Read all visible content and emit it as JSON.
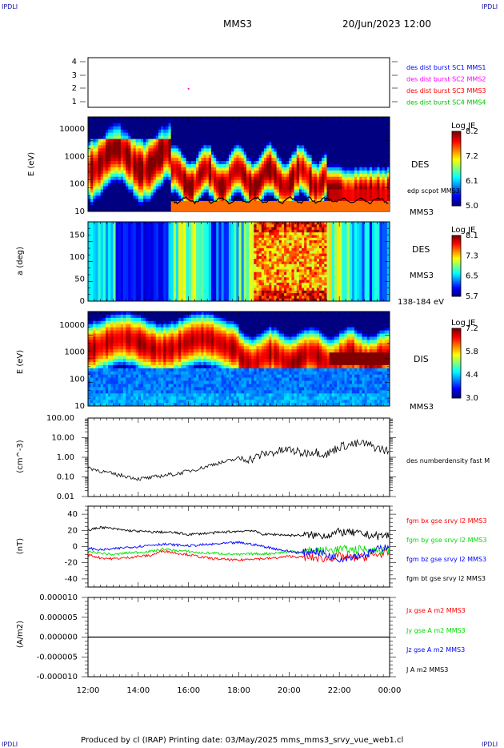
{
  "corner_label": "IPDLI",
  "header": {
    "title": "MMS3",
    "datetime": "20/Jun/2023 12:00"
  },
  "footer": {
    "text": "Produced by cl (IRAP)   Printing date: 03/May/2025   mms_mms3_srvy_vue_web1.cl"
  },
  "colors": {
    "mms1": "#0000ff",
    "mms2": "#ff00ff",
    "mms3": "#ff0000",
    "mms4": "#00c000",
    "bx": "#ff0000",
    "by": "#00dd00",
    "bz": "#0000ff",
    "bt": "#000000"
  },
  "chart_data": [
    {
      "type": "scatter",
      "panel": "burst",
      "yticks": [
        "4",
        "3",
        "2",
        "1"
      ],
      "ylim": [
        0.5,
        4.5
      ],
      "series": [
        {
          "name": "des dist burst SC1 MMS1",
          "color": "#0000ff",
          "values": []
        },
        {
          "name": "des dist burst SC2 MMS2",
          "color": "#ff00ff",
          "points": [
            {
              "x": "16:00",
              "y": 2
            }
          ]
        },
        {
          "name": "des dist burst SC3 MMS3",
          "color": "#ff0000",
          "values": []
        },
        {
          "name": "des dist burst SC4 MMS4",
          "color": "#00c000",
          "values": []
        }
      ]
    },
    {
      "type": "heatmap",
      "panel": "des-energy",
      "ylabel": "E (eV)",
      "yticks": [
        "10000",
        "1000",
        "100",
        "10"
      ],
      "ylim": [
        10,
        30000
      ],
      "yscale": "log",
      "label_right": "DES",
      "label_sc": "MMS3",
      "overlay_label": "edp scpot MMS3",
      "colorbar": {
        "title": "Log JE",
        "ticks": [
          "8.2",
          "7.2",
          "6.1",
          "5.0"
        ],
        "range": [
          5.0,
          8.2
        ]
      }
    },
    {
      "type": "heatmap",
      "panel": "des-pitch",
      "ylabel": "a (deg)",
      "yticks": [
        "150",
        "100",
        "50",
        "0"
      ],
      "ylim": [
        0,
        180
      ],
      "label_right": "DES",
      "label_sc": "MMS3",
      "energy_range": "138-184 eV",
      "colorbar": {
        "title": "Log JE",
        "ticks": [
          "8.1",
          "7.3",
          "6.5",
          "5.7"
        ],
        "range": [
          5.7,
          8.1
        ]
      }
    },
    {
      "type": "heatmap",
      "panel": "dis-energy",
      "ylabel": "E (eV)",
      "yticks": [
        "10000",
        "1000",
        "100",
        "10"
      ],
      "ylim": [
        10,
        30000
      ],
      "yscale": "log",
      "label_right": "DIS",
      "label_sc": "MMS3",
      "colorbar": {
        "title": "Log JE",
        "ticks": [
          "7.2",
          "5.8",
          "4.4",
          "3.0"
        ],
        "range": [
          3.0,
          7.2
        ]
      }
    },
    {
      "type": "line",
      "panel": "density",
      "ylabel": "(cm^-3)",
      "yscale": "log",
      "yticks": [
        "100.00",
        "10.00",
        "1.00",
        "0.10",
        "0.01"
      ],
      "ylim": [
        0.01,
        100
      ],
      "series": [
        {
          "name": "des numberdensity fast M",
          "x": [
            12,
            12.5,
            13,
            13.5,
            14,
            14.5,
            15,
            15.5,
            16,
            16.5,
            17,
            17.5,
            18,
            18.5,
            19,
            19.5,
            20,
            20.5,
            21,
            21.5,
            22,
            22.5,
            23,
            23.5,
            24
          ],
          "values": [
            0.3,
            0.2,
            0.14,
            0.11,
            0.08,
            0.09,
            0.12,
            0.14,
            0.2,
            0.28,
            0.45,
            0.6,
            0.9,
            0.8,
            1.5,
            1.9,
            2.5,
            1.6,
            2.0,
            1.4,
            3.5,
            4.5,
            5.0,
            3.0,
            2.0
          ]
        }
      ]
    },
    {
      "type": "line",
      "panel": "fgm",
      "ylabel": "(nT)",
      "yticks": [
        "40",
        "20",
        "0",
        "-20",
        "-40"
      ],
      "ylim": [
        -50,
        50
      ],
      "series": [
        {
          "name": "fgm bx gse srvy l2 MMS3",
          "color": "#ff0000",
          "x": [
            12,
            12.5,
            13,
            13.5,
            14,
            14.5,
            15,
            15.5,
            16,
            16.5,
            17,
            17.5,
            18,
            18.5,
            19,
            19.5,
            20,
            20.5,
            21,
            21.5,
            22,
            22.5,
            23,
            23.5,
            24
          ],
          "values": [
            -10,
            -14,
            -15,
            -14,
            -12,
            -11,
            -5,
            -8,
            -10,
            -13,
            -15,
            -16,
            -17,
            -15,
            -15,
            -14,
            -12,
            -13,
            -14,
            -15,
            -12,
            -14,
            -13,
            -10,
            -8
          ]
        },
        {
          "name": "fgm by gse srvy l2 MMS3",
          "color": "#00dd00",
          "x": [
            12,
            12.5,
            13,
            13.5,
            14,
            14.5,
            15,
            15.5,
            16,
            16.5,
            17,
            17.5,
            18,
            18.5,
            19,
            19.5,
            20,
            20.5,
            21,
            21.5,
            22,
            22.5,
            23,
            23.5,
            24
          ],
          "values": [
            -6,
            -8,
            -10,
            -8,
            -7,
            -6,
            -3,
            -5,
            -6,
            -8,
            -8,
            -9,
            -10,
            -9,
            -9,
            -8,
            -6,
            -6,
            -5,
            -5,
            -3,
            -4,
            -3,
            -5,
            -5
          ]
        },
        {
          "name": "fgm bz gse srvy l2 MMS3",
          "color": "#0000ff",
          "x": [
            12,
            12.5,
            13,
            13.5,
            14,
            14.5,
            15,
            15.5,
            16,
            16.5,
            17,
            17.5,
            18,
            18.5,
            19,
            19.5,
            20,
            20.5,
            21,
            21.5,
            22,
            22.5,
            23,
            23.5,
            24
          ],
          "values": [
            -2,
            -4,
            -3,
            -1,
            0,
            2,
            3,
            2,
            1,
            2,
            3,
            4,
            5,
            3,
            0,
            -3,
            -6,
            -8,
            -5,
            -10,
            -15,
            -12,
            -10,
            -4,
            2
          ]
        },
        {
          "name": "fgm bt gse srvy l2 MMS3",
          "color": "#000000",
          "x": [
            12,
            12.5,
            13,
            13.5,
            14,
            14.5,
            15,
            15.5,
            16,
            16.5,
            17,
            17.5,
            18,
            18.5,
            19,
            19.5,
            20,
            20.5,
            21,
            21.5,
            22,
            22.5,
            23,
            23.5,
            24
          ],
          "values": [
            20,
            24,
            22,
            20,
            19,
            18,
            18,
            17,
            15,
            16,
            17,
            18,
            19,
            20,
            15,
            15,
            14,
            14,
            14,
            14,
            18,
            17,
            15,
            13,
            14
          ]
        }
      ]
    },
    {
      "type": "line",
      "panel": "current",
      "ylabel": "(A/m2)",
      "yticks": [
        "0.000010",
        "0.000005",
        "0.000000",
        "-0.000005",
        "-0.000010"
      ],
      "ylim": [
        -1e-05,
        1e-05
      ],
      "series": [
        {
          "name": "Jx gse A m2 MMS3",
          "color": "#ff0000",
          "values": [
            0,
            0
          ]
        },
        {
          "name": "Jy gse A m2 MMS3",
          "color": "#00dd00",
          "values": [
            0,
            0
          ]
        },
        {
          "name": "Jz gse A m2 MMS3",
          "color": "#0000ff",
          "values": [
            0,
            0
          ]
        },
        {
          "name": "J A m2 MMS3",
          "color": "#000000",
          "values": [
            0,
            0
          ]
        }
      ]
    }
  ],
  "x_axis": {
    "ticks": [
      "12:00",
      "14:00",
      "16:00",
      "18:00",
      "20:00",
      "22:00",
      "00:00"
    ],
    "range_hours": [
      12,
      24
    ]
  }
}
